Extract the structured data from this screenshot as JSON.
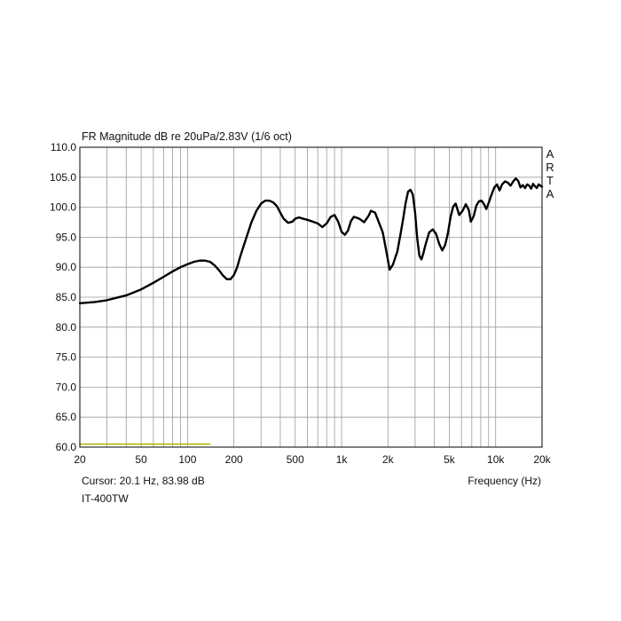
{
  "chart_data": {
    "type": "line",
    "title": "FR Magnitude dB re 20uPa/2.83V (1/6 oct)",
    "xlabel": "Frequency (Hz)",
    "ylabel": "",
    "x_scale": "log",
    "xlim": [
      20,
      20000
    ],
    "ylim": [
      60,
      110
    ],
    "grid": true,
    "x_tick_labels": [
      {
        "value": 20,
        "label": "20"
      },
      {
        "value": 50,
        "label": "50"
      },
      {
        "value": 100,
        "label": "100"
      },
      {
        "value": 200,
        "label": "200"
      },
      {
        "value": 500,
        "label": "500"
      },
      {
        "value": 1000,
        "label": "1k"
      },
      {
        "value": 2000,
        "label": "2k"
      },
      {
        "value": 5000,
        "label": "5k"
      },
      {
        "value": 10000,
        "label": "10k"
      },
      {
        "value": 20000,
        "label": "20k"
      }
    ],
    "y_ticks": [
      {
        "value": 110,
        "label": "110.0"
      },
      {
        "value": 105,
        "label": "105.0"
      },
      {
        "value": 100,
        "label": "100.0"
      },
      {
        "value": 95,
        "label": "95.0"
      },
      {
        "value": 90,
        "label": "90.0"
      },
      {
        "value": 85,
        "label": "85.0"
      },
      {
        "value": 80,
        "label": "80.0"
      },
      {
        "value": 75,
        "label": "75.0"
      },
      {
        "value": 70,
        "label": "70.0"
      },
      {
        "value": 65,
        "label": "65.0"
      },
      {
        "value": 60,
        "label": "60.0"
      }
    ],
    "series": [
      {
        "color": "#000000",
        "points": [
          [
            20,
            84
          ],
          [
            25,
            84.2
          ],
          [
            30,
            84.5
          ],
          [
            40,
            85.3
          ],
          [
            50,
            86.3
          ],
          [
            60,
            87.4
          ],
          [
            70,
            88.4
          ],
          [
            80,
            89.3
          ],
          [
            90,
            90
          ],
          [
            100,
            90.5
          ],
          [
            110,
            90.9
          ],
          [
            120,
            91.1
          ],
          [
            130,
            91.1
          ],
          [
            140,
            90.9
          ],
          [
            150,
            90.3
          ],
          [
            160,
            89.5
          ],
          [
            170,
            88.6
          ],
          [
            180,
            88
          ],
          [
            190,
            88
          ],
          [
            200,
            88.7
          ],
          [
            210,
            90
          ],
          [
            220,
            91.8
          ],
          [
            240,
            94.8
          ],
          [
            260,
            97.5
          ],
          [
            280,
            99.4
          ],
          [
            300,
            100.6
          ],
          [
            320,
            101.1
          ],
          [
            340,
            101.1
          ],
          [
            360,
            100.8
          ],
          [
            380,
            100.2
          ],
          [
            400,
            99.1
          ],
          [
            420,
            98.1
          ],
          [
            450,
            97.4
          ],
          [
            480,
            97.6
          ],
          [
            500,
            98.1
          ],
          [
            530,
            98.3
          ],
          [
            560,
            98.1
          ],
          [
            600,
            97.9
          ],
          [
            650,
            97.6
          ],
          [
            700,
            97.3
          ],
          [
            750,
            96.7
          ],
          [
            800,
            97.3
          ],
          [
            850,
            98.4
          ],
          [
            900,
            98.7
          ],
          [
            950,
            97.6
          ],
          [
            1000,
            95.9
          ],
          [
            1050,
            95.4
          ],
          [
            1100,
            96.1
          ],
          [
            1150,
            97.7
          ],
          [
            1200,
            98.4
          ],
          [
            1300,
            98.1
          ],
          [
            1400,
            97.5
          ],
          [
            1500,
            98.6
          ],
          [
            1550,
            99.4
          ],
          [
            1650,
            99.1
          ],
          [
            1750,
            97.4
          ],
          [
            1850,
            95.8
          ],
          [
            1950,
            92.7
          ],
          [
            2050,
            89.6
          ],
          [
            2150,
            90.4
          ],
          [
            2300,
            92.6
          ],
          [
            2400,
            95.2
          ],
          [
            2500,
            97.8
          ],
          [
            2600,
            100.6
          ],
          [
            2700,
            102.6
          ],
          [
            2800,
            102.9
          ],
          [
            2900,
            102.1
          ],
          [
            3000,
            99.1
          ],
          [
            3100,
            94.7
          ],
          [
            3200,
            91.9
          ],
          [
            3300,
            91.3
          ],
          [
            3400,
            92.4
          ],
          [
            3500,
            93.7
          ],
          [
            3700,
            95.8
          ],
          [
            3900,
            96.3
          ],
          [
            4100,
            95.6
          ],
          [
            4300,
            93.9
          ],
          [
            4500,
            92.8
          ],
          [
            4700,
            93.7
          ],
          [
            4900,
            95.7
          ],
          [
            5100,
            98.4
          ],
          [
            5300,
            100.1
          ],
          [
            5500,
            100.6
          ],
          [
            5800,
            98.7
          ],
          [
            6100,
            99.4
          ],
          [
            6400,
            100.5
          ],
          [
            6700,
            99.5
          ],
          [
            6900,
            97.6
          ],
          [
            7200,
            98.5
          ],
          [
            7500,
            100.3
          ],
          [
            7800,
            101
          ],
          [
            8100,
            101.1
          ],
          [
            8400,
            100.5
          ],
          [
            8700,
            99.7
          ],
          [
            9000,
            100.7
          ],
          [
            9400,
            102.1
          ],
          [
            9800,
            103.3
          ],
          [
            10200,
            103.8
          ],
          [
            10600,
            102.8
          ],
          [
            11000,
            103.8
          ],
          [
            11500,
            104.3
          ],
          [
            12000,
            104.1
          ],
          [
            12500,
            103.6
          ],
          [
            13000,
            104.3
          ],
          [
            13500,
            104.8
          ],
          [
            14000,
            104.4
          ],
          [
            14500,
            103.3
          ],
          [
            15000,
            103.7
          ],
          [
            15500,
            103.2
          ],
          [
            16000,
            103.8
          ],
          [
            16500,
            103.6
          ],
          [
            17000,
            103.1
          ],
          [
            17500,
            103.9
          ],
          [
            18000,
            103.5
          ],
          [
            18500,
            103.2
          ],
          [
            19000,
            103.8
          ],
          [
            20000,
            103.4
          ]
        ]
      },
      {
        "color": "#b5b000",
        "points": [
          [
            20,
            60.5
          ],
          [
            140,
            60.5
          ]
        ]
      }
    ],
    "cursor_readout": "Cursor: 20.1 Hz, 83.98 dB",
    "device_label": "IT-400TW",
    "side_label": [
      "A",
      "R",
      "T",
      "A"
    ]
  }
}
